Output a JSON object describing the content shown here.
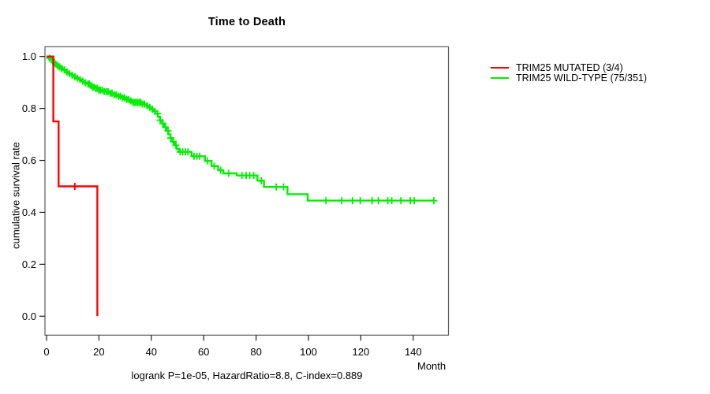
{
  "title": "Time to Death",
  "annotation": "logrank P=1e-05, HazardRatio=8.8, C-index=0.889",
  "axes": {
    "xlabel": "Month",
    "ylabel": "cumulative survival rate"
  },
  "colors": {
    "mutated": "#ff0000",
    "wildtype": "#00ee00",
    "box": "#5a5a5a",
    "tick": "#1a1a1a",
    "text": "#000000"
  },
  "chart_data": {
    "type": "line",
    "subtype": "kaplan-meier-step-survival",
    "title": "Time to Death",
    "xlabel": "Month",
    "ylabel": "cumulative survival rate",
    "xlim": [
      0,
      153
    ],
    "ylim": [
      0,
      1.0
    ],
    "xticks": [
      0,
      20,
      40,
      60,
      80,
      100,
      120,
      140
    ],
    "yticks": [
      0.0,
      0.2,
      0.4,
      0.6,
      0.8,
      1.0
    ],
    "grid": false,
    "legend_position": "outside-top-right",
    "series": [
      {
        "name": "TRIM25 MUTATED (3/4)",
        "color": "#ff0000",
        "start_value": 1.0,
        "steps": [
          [
            2.6,
            0.75
          ],
          [
            4.6,
            0.5
          ],
          [
            19.4,
            0.0
          ]
        ],
        "end": 19.4,
        "censors": [
          10.8
        ]
      },
      {
        "name": "TRIM25 WILD-TYPE (75/351)",
        "color": "#00ee00",
        "start_value": 1.0,
        "steps": [
          [
            0.8,
            0.994
          ],
          [
            1.5,
            0.988
          ],
          [
            2.2,
            0.977
          ],
          [
            3.0,
            0.971
          ],
          [
            3.8,
            0.965
          ],
          [
            4.6,
            0.96
          ],
          [
            5.5,
            0.954
          ],
          [
            6.5,
            0.948
          ],
          [
            7.5,
            0.94
          ],
          [
            8.5,
            0.934
          ],
          [
            9.5,
            0.928
          ],
          [
            10.5,
            0.922
          ],
          [
            11.5,
            0.917
          ],
          [
            12.5,
            0.911
          ],
          [
            13.5,
            0.905
          ],
          [
            14.5,
            0.899
          ],
          [
            15.5,
            0.894
          ],
          [
            16.5,
            0.888
          ],
          [
            17.5,
            0.882
          ],
          [
            18.5,
            0.877
          ],
          [
            20.0,
            0.871
          ],
          [
            22.0,
            0.865
          ],
          [
            24.0,
            0.859
          ],
          [
            25.5,
            0.853
          ],
          [
            27.0,
            0.847
          ],
          [
            28.5,
            0.841
          ],
          [
            30.0,
            0.835
          ],
          [
            31.5,
            0.829
          ],
          [
            33.0,
            0.823
          ],
          [
            36.5,
            0.817
          ],
          [
            37.5,
            0.811
          ],
          [
            38.5,
            0.804
          ],
          [
            39.5,
            0.797
          ],
          [
            40.5,
            0.789
          ],
          [
            41.5,
            0.78
          ],
          [
            42.5,
            0.768
          ],
          [
            43.3,
            0.755
          ],
          [
            44.1,
            0.742
          ],
          [
            44.9,
            0.728
          ],
          [
            45.7,
            0.714
          ],
          [
            46.5,
            0.7
          ],
          [
            47.3,
            0.686
          ],
          [
            48.1,
            0.672
          ],
          [
            48.9,
            0.658
          ],
          [
            49.7,
            0.645
          ],
          [
            50.5,
            0.633
          ],
          [
            55.4,
            0.616
          ],
          [
            60.5,
            0.598
          ],
          [
            63.0,
            0.578
          ],
          [
            65.5,
            0.562
          ],
          [
            67.5,
            0.55
          ],
          [
            72.6,
            0.542
          ],
          [
            80.5,
            0.522
          ],
          [
            83.0,
            0.498
          ],
          [
            92.0,
            0.47
          ],
          [
            99.7,
            0.445
          ]
        ],
        "end": 148,
        "censors": [
          1.2,
          2.0,
          2.8,
          3.5,
          4.2,
          5.0,
          5.8,
          6.8,
          7.8,
          8.8,
          9.8,
          10.8,
          11.8,
          12.8,
          13.8,
          14.8,
          15.8,
          16.4,
          17.0,
          17.6,
          18.2,
          18.8,
          19.4,
          20.0,
          20.6,
          21.3,
          22.0,
          22.8,
          23.5,
          24.3,
          25.0,
          25.8,
          26.6,
          27.4,
          28.2,
          29.0,
          29.8,
          30.6,
          31.4,
          32.2,
          33.0,
          33.6,
          34.2,
          34.8,
          35.4,
          36.0,
          36.6,
          37.4,
          38.4,
          39.4,
          40.4,
          41.4,
          42.4,
          43.4,
          44.4,
          45.4,
          46.4,
          47.4,
          48.4,
          49.4,
          51.0,
          52.0,
          53.0,
          54.0,
          56.3,
          57.4,
          58.5,
          61.5,
          64.0,
          66.5,
          69.5,
          74.6,
          76.2,
          77.6,
          79.1,
          82.0,
          87.7,
          90.5,
          106.7,
          112.7,
          116.8,
          119.8,
          124.3,
          126.7,
          130.3,
          131.8,
          135.3,
          138.9,
          140.4,
          147.9
        ]
      }
    ]
  }
}
